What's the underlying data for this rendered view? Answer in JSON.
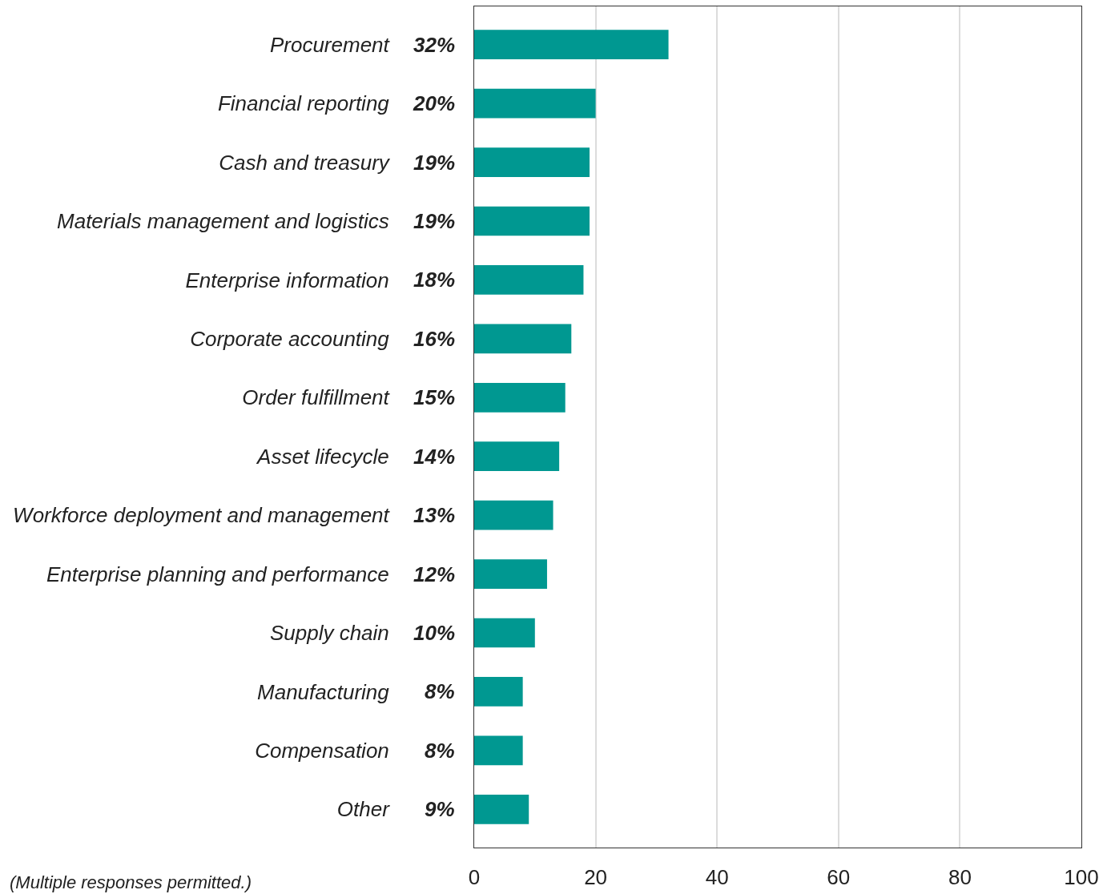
{
  "chart_data": {
    "type": "bar",
    "orientation": "horizontal",
    "categories": [
      "Procurement",
      "Financial reporting",
      "Cash and treasury",
      "Materials management and logistics",
      "Enterprise information",
      "Corporate accounting",
      "Order fulfillment",
      "Asset lifecycle",
      "Workforce deployment and management",
      "Enterprise planning and performance",
      "Supply chain",
      "Manufacturing",
      "Compensation",
      "Other"
    ],
    "values": [
      32,
      20,
      19,
      19,
      18,
      16,
      15,
      14,
      13,
      12,
      10,
      8,
      8,
      9
    ],
    "value_labels": [
      "32%",
      "20%",
      "19%",
      "19%",
      "18%",
      "16%",
      "15%",
      "14%",
      "13%",
      "12%",
      "10%",
      "8%",
      "8%",
      "9%"
    ],
    "color": "#009891",
    "xlim": [
      0,
      100
    ],
    "xticks": [
      0,
      20,
      40,
      60,
      80,
      100
    ],
    "grid": "x",
    "annotations": [
      "(Multiple responses permitted.)"
    ]
  }
}
